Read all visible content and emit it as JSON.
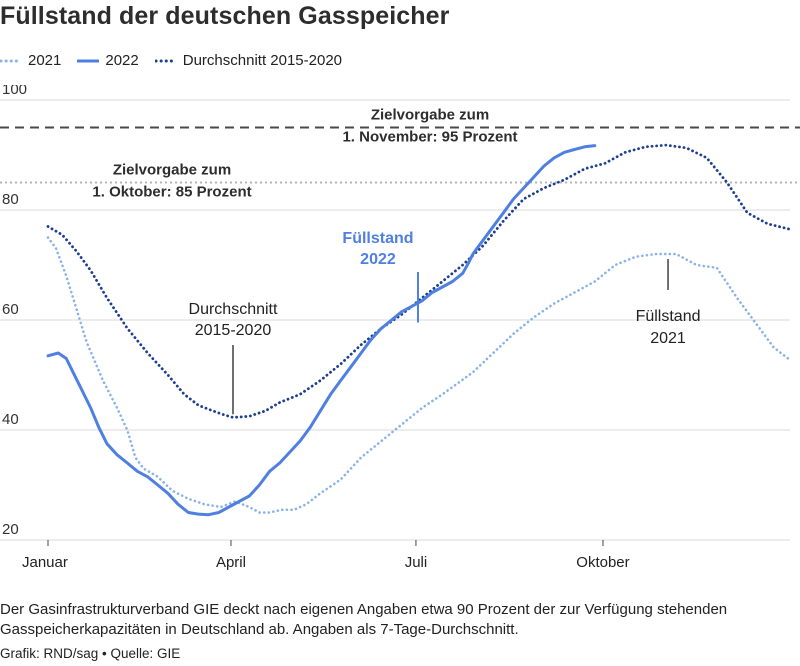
{
  "title": "Füllstand der deutschen Gasspeicher",
  "footer": {
    "note": "Der Gasinfrastrukturverband GIE deckt nach eigenen Angaben etwa 90 Prozent der zur Verfügung stehenden Gasspeicherkapazitäten in Deutschland ab. Angaben als 7-Tage-Durchschnitt.",
    "source": "Grafik: RND/sag • Quelle: GIE"
  },
  "colors": {
    "s2021": "#8ab3e8",
    "s2022": "#4f7fe0",
    "avg": "#1c3f8f",
    "target_nov": "#4a4a4a",
    "target_oct": "#b5b5b5",
    "grid": "#d9d9d9",
    "label_2022": "#4f7fe0"
  },
  "chart_data": {
    "type": "line",
    "ylim": [
      20,
      100
    ],
    "yticks": [
      20,
      40,
      60,
      80,
      100
    ],
    "xlim": [
      1,
      366
    ],
    "xticks": [
      {
        "label": "Januar",
        "day": 1
      },
      {
        "label": "April",
        "day": 91
      },
      {
        "label": "Juli",
        "day": 182
      },
      {
        "label": "Oktober",
        "day": 274
      }
    ],
    "series": [
      {
        "name": "2021",
        "style": "dotted-light",
        "points": [
          [
            1,
            75
          ],
          [
            5,
            73
          ],
          [
            10,
            68
          ],
          [
            15,
            62
          ],
          [
            20,
            56
          ],
          [
            28,
            49
          ],
          [
            35,
            44
          ],
          [
            40,
            40
          ],
          [
            44,
            35
          ],
          [
            48,
            33
          ],
          [
            55,
            31.5
          ],
          [
            62,
            29
          ],
          [
            70,
            27.5
          ],
          [
            78,
            26.5
          ],
          [
            86,
            26
          ],
          [
            93,
            27
          ],
          [
            100,
            26
          ],
          [
            105,
            25
          ],
          [
            110,
            25
          ],
          [
            116,
            25.5
          ],
          [
            122,
            25.5
          ],
          [
            128,
            26.5
          ],
          [
            135,
            28.5
          ],
          [
            145,
            31
          ],
          [
            155,
            35
          ],
          [
            165,
            38
          ],
          [
            175,
            41
          ],
          [
            185,
            44
          ],
          [
            195,
            46.5
          ],
          [
            210,
            50.5
          ],
          [
            220,
            54
          ],
          [
            230,
            57.5
          ],
          [
            240,
            60.5
          ],
          [
            250,
            63
          ],
          [
            260,
            65
          ],
          [
            270,
            67
          ],
          [
            280,
            70
          ],
          [
            290,
            71.5
          ],
          [
            300,
            72
          ],
          [
            310,
            72
          ],
          [
            320,
            70
          ],
          [
            330,
            69.5
          ],
          [
            340,
            64
          ],
          [
            350,
            59
          ],
          [
            358,
            55
          ],
          [
            365,
            53
          ]
        ]
      },
      {
        "name": "2022",
        "style": "solid",
        "points": [
          [
            1,
            53.5
          ],
          [
            6,
            54
          ],
          [
            10,
            53
          ],
          [
            14,
            50
          ],
          [
            18,
            47
          ],
          [
            22,
            44
          ],
          [
            26,
            40.5
          ],
          [
            30,
            37.5
          ],
          [
            35,
            35.5
          ],
          [
            40,
            34
          ],
          [
            45,
            32.5
          ],
          [
            50,
            31.5
          ],
          [
            55,
            30
          ],
          [
            60,
            28.5
          ],
          [
            65,
            26.5
          ],
          [
            70,
            25
          ],
          [
            75,
            24.7
          ],
          [
            80,
            24.6
          ],
          [
            85,
            25
          ],
          [
            90,
            26
          ],
          [
            95,
            27
          ],
          [
            100,
            28
          ],
          [
            105,
            30
          ],
          [
            110,
            32.5
          ],
          [
            115,
            34
          ],
          [
            120,
            36
          ],
          [
            125,
            38
          ],
          [
            130,
            40.5
          ],
          [
            135,
            43.5
          ],
          [
            140,
            46.5
          ],
          [
            145,
            49
          ],
          [
            150,
            51.5
          ],
          [
            155,
            54
          ],
          [
            160,
            56.5
          ],
          [
            165,
            58.5
          ],
          [
            170,
            60
          ],
          [
            175,
            61.5
          ],
          [
            180,
            62.5
          ],
          [
            185,
            63.5
          ],
          [
            190,
            65
          ],
          [
            195,
            66
          ],
          [
            200,
            67
          ],
          [
            205,
            68.5
          ],
          [
            208,
            70.5
          ],
          [
            210,
            72
          ],
          [
            215,
            74.5
          ],
          [
            220,
            77
          ],
          [
            225,
            79.5
          ],
          [
            230,
            82
          ],
          [
            235,
            84
          ],
          [
            240,
            86
          ],
          [
            245,
            88
          ],
          [
            250,
            89.5
          ],
          [
            255,
            90.5
          ],
          [
            260,
            91
          ],
          [
            265,
            91.5
          ],
          [
            270,
            91.7
          ]
        ]
      },
      {
        "name": "Durchschnitt 2015-2020",
        "style": "dotted-dark",
        "points": [
          [
            1,
            77
          ],
          [
            8,
            75.5
          ],
          [
            15,
            72.5
          ],
          [
            22,
            69
          ],
          [
            30,
            64
          ],
          [
            40,
            58.5
          ],
          [
            50,
            54
          ],
          [
            60,
            50
          ],
          [
            68,
            46.5
          ],
          [
            75,
            44.5
          ],
          [
            82,
            43.5
          ],
          [
            88,
            42.7
          ],
          [
            92,
            42.3
          ],
          [
            100,
            42.5
          ],
          [
            108,
            43.5
          ],
          [
            115,
            45
          ],
          [
            125,
            46.5
          ],
          [
            135,
            49
          ],
          [
            145,
            52
          ],
          [
            155,
            55.5
          ],
          [
            165,
            58.5
          ],
          [
            175,
            61
          ],
          [
            185,
            64
          ],
          [
            195,
            67
          ],
          [
            205,
            70
          ],
          [
            215,
            73.5
          ],
          [
            225,
            78
          ],
          [
            235,
            82
          ],
          [
            245,
            84
          ],
          [
            255,
            85.5
          ],
          [
            265,
            87.5
          ],
          [
            275,
            88.5
          ],
          [
            285,
            90.5
          ],
          [
            295,
            91.5
          ],
          [
            305,
            91.8
          ],
          [
            315,
            91.3
          ],
          [
            325,
            89.5
          ],
          [
            335,
            85
          ],
          [
            345,
            79.5
          ],
          [
            355,
            77.5
          ],
          [
            366,
            76.5
          ]
        ]
      }
    ],
    "targets": [
      {
        "value": 95,
        "label_line1": "Zielvorgabe zum",
        "label_line2": "1. November: 95 Prozent",
        "style": "dashed"
      },
      {
        "value": 85,
        "label_line1": "Zielvorgabe zum",
        "label_line2": "1. Oktober: 85 Prozent",
        "style": "dotted"
      }
    ],
    "annotations": [
      {
        "id": "avg",
        "line1": "Durchschnitt",
        "line2": "2015-2020",
        "bold": false,
        "anchor_day": 92,
        "anchor_value": 42.5
      },
      {
        "id": "y2022",
        "line1": "Füllstand",
        "line2": "2022",
        "bold": true,
        "anchor_day": 183,
        "anchor_value": 61
      },
      {
        "id": "y2021",
        "line1": "Füllstand",
        "line2": "2021",
        "bold": false,
        "anchor_day": 306,
        "anchor_value": 72
      }
    ]
  }
}
